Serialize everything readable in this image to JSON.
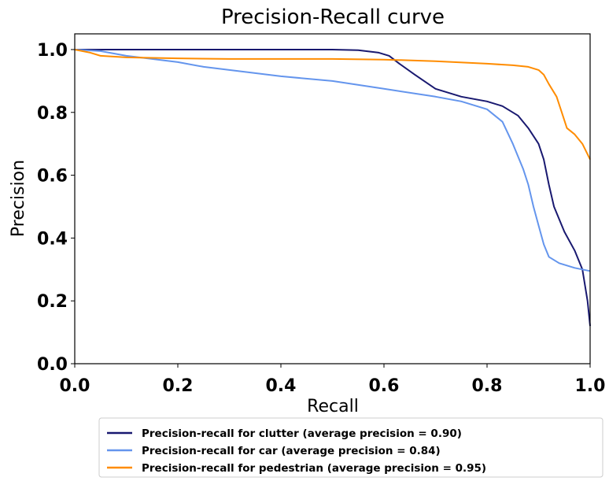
{
  "chart_data": {
    "type": "line",
    "title": "Precision-Recall curve",
    "xlabel": "Recall",
    "ylabel": "Precision",
    "xlim": [
      0.0,
      1.0
    ],
    "ylim": [
      0.0,
      1.05
    ],
    "x_ticks": [
      "0.0",
      "0.2",
      "0.4",
      "0.6",
      "0.8",
      "1.0"
    ],
    "y_ticks": [
      "0.0",
      "0.2",
      "0.4",
      "0.6",
      "0.8",
      "1.0"
    ],
    "grid": false,
    "legend_position": "bottom-center",
    "series": [
      {
        "name": "Precision-recall for clutter (average precision = 0.90)",
        "color": "#191970",
        "points": [
          [
            0.0,
            1.0
          ],
          [
            0.1,
            1.0
          ],
          [
            0.2,
            1.0
          ],
          [
            0.3,
            1.0
          ],
          [
            0.4,
            1.0
          ],
          [
            0.5,
            1.0
          ],
          [
            0.55,
            0.998
          ],
          [
            0.59,
            0.99
          ],
          [
            0.61,
            0.98
          ],
          [
            0.63,
            0.955
          ],
          [
            0.66,
            0.92
          ],
          [
            0.7,
            0.875
          ],
          [
            0.75,
            0.85
          ],
          [
            0.8,
            0.835
          ],
          [
            0.83,
            0.82
          ],
          [
            0.86,
            0.79
          ],
          [
            0.88,
            0.75
          ],
          [
            0.9,
            0.7
          ],
          [
            0.91,
            0.65
          ],
          [
            0.92,
            0.57
          ],
          [
            0.93,
            0.5
          ],
          [
            0.95,
            0.42
          ],
          [
            0.97,
            0.36
          ],
          [
            0.985,
            0.3
          ],
          [
            0.995,
            0.2
          ],
          [
            1.0,
            0.12
          ]
        ]
      },
      {
        "name": "Precision-recall for car (average precision = 0.84)",
        "color": "#6495ED",
        "points": [
          [
            0.0,
            1.0
          ],
          [
            0.05,
            0.995
          ],
          [
            0.1,
            0.98
          ],
          [
            0.15,
            0.97
          ],
          [
            0.2,
            0.96
          ],
          [
            0.25,
            0.945
          ],
          [
            0.3,
            0.935
          ],
          [
            0.4,
            0.915
          ],
          [
            0.5,
            0.9
          ],
          [
            0.6,
            0.875
          ],
          [
            0.7,
            0.85
          ],
          [
            0.75,
            0.835
          ],
          [
            0.8,
            0.81
          ],
          [
            0.83,
            0.77
          ],
          [
            0.85,
            0.7
          ],
          [
            0.87,
            0.62
          ],
          [
            0.88,
            0.57
          ],
          [
            0.89,
            0.5
          ],
          [
            0.9,
            0.44
          ],
          [
            0.91,
            0.38
          ],
          [
            0.92,
            0.34
          ],
          [
            0.94,
            0.32
          ],
          [
            0.97,
            0.305
          ],
          [
            1.0,
            0.295
          ]
        ]
      },
      {
        "name": "Precision-recall for pedestrian (average precision = 0.95)",
        "color": "#FF8C00",
        "points": [
          [
            0.0,
            1.0
          ],
          [
            0.03,
            0.99
          ],
          [
            0.05,
            0.98
          ],
          [
            0.1,
            0.975
          ],
          [
            0.2,
            0.972
          ],
          [
            0.3,
            0.97
          ],
          [
            0.4,
            0.97
          ],
          [
            0.5,
            0.97
          ],
          [
            0.6,
            0.968
          ],
          [
            0.7,
            0.963
          ],
          [
            0.8,
            0.955
          ],
          [
            0.85,
            0.95
          ],
          [
            0.88,
            0.945
          ],
          [
            0.9,
            0.935
          ],
          [
            0.91,
            0.92
          ],
          [
            0.92,
            0.89
          ],
          [
            0.935,
            0.85
          ],
          [
            0.945,
            0.8
          ],
          [
            0.955,
            0.75
          ],
          [
            0.97,
            0.73
          ],
          [
            0.985,
            0.7
          ],
          [
            1.0,
            0.65
          ]
        ]
      }
    ]
  }
}
